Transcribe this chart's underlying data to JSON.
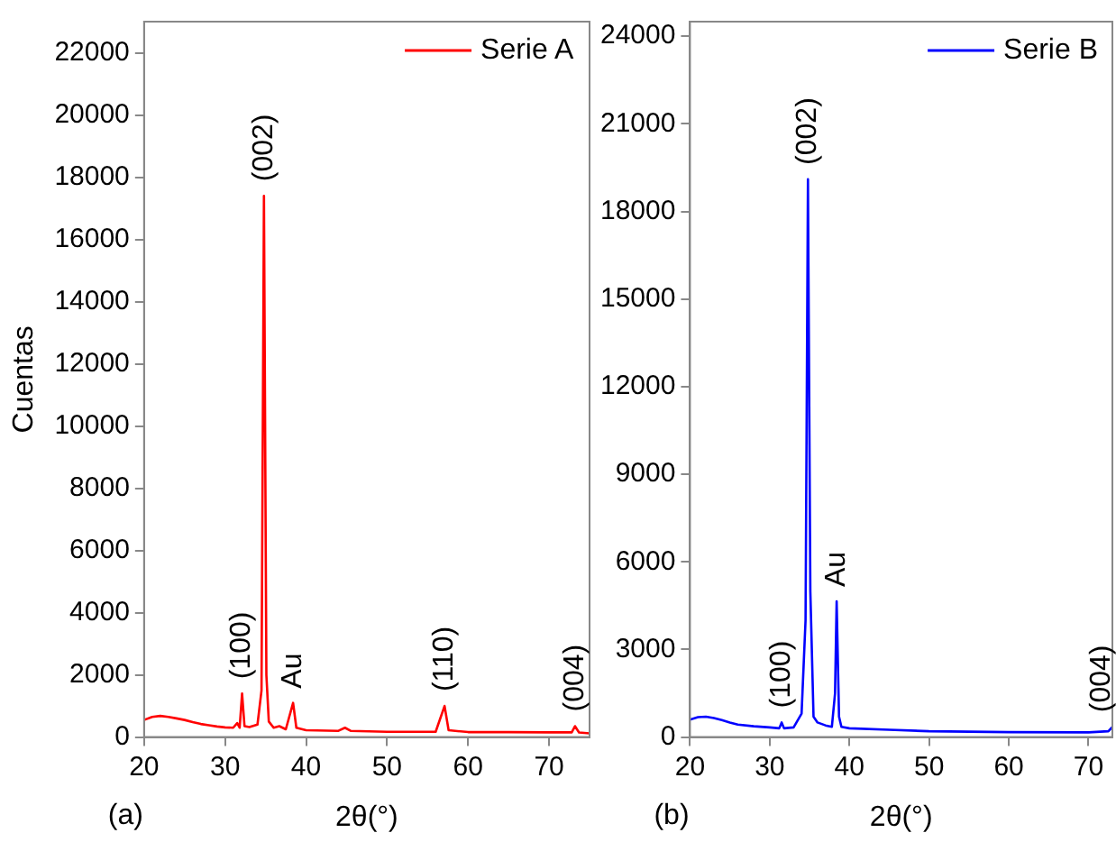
{
  "chart_data": [
    {
      "type": "line",
      "xlabel": "2θ(°)",
      "ylabel": "Cuentas",
      "xlim": [
        20,
        75
      ],
      "xticks": [
        20,
        30,
        40,
        50,
        60,
        70
      ],
      "ylim": [
        0,
        23000
      ],
      "yticks": [
        0,
        2000,
        4000,
        6000,
        8000,
        10000,
        12000,
        14000,
        16000,
        18000,
        20000,
        22000
      ],
      "grid": false,
      "legend": "top right",
      "marker": "none",
      "line_style": "solid",
      "series": [
        {
          "name": "Serie A",
          "color": "#ff0000",
          "x": [
            20,
            21,
            22,
            23,
            24,
            25,
            26,
            27,
            28,
            29,
            30,
            31,
            31.5,
            31.8,
            32.1,
            32.4,
            33,
            34,
            34.5,
            34.8,
            35.1,
            35.4,
            36,
            36.7,
            37.5,
            38.4,
            38.8,
            40,
            44,
            44.8,
            45.5,
            50,
            56,
            57.1,
            57.6,
            60,
            65,
            70,
            72.8,
            73.2,
            73.7,
            75
          ],
          "values": [
            550,
            650,
            680,
            650,
            600,
            550,
            480,
            420,
            380,
            340,
            310,
            300,
            450,
            300,
            1400,
            350,
            320,
            400,
            1500,
            17400,
            2000,
            500,
            300,
            350,
            250,
            1100,
            300,
            220,
            200,
            300,
            200,
            170,
            170,
            1000,
            220,
            160,
            160,
            150,
            150,
            350,
            150,
            120
          ]
        }
      ],
      "annotations": [
        {
          "text": "(100)",
          "x": 32.1,
          "y": 1400
        },
        {
          "text": "(002)",
          "x": 34.8,
          "y": 17400
        },
        {
          "text": "Au",
          "x": 38.4,
          "y": 1100
        },
        {
          "text": "(110)",
          "x": 57.1,
          "y": 1000
        },
        {
          "text": "(004)",
          "x": 73.2,
          "y": 350
        },
        "(a)"
      ]
    },
    {
      "type": "line",
      "xlabel": "2θ(°)",
      "xlim": [
        20,
        73
      ],
      "xticks": [
        20,
        30,
        40,
        50,
        60,
        70
      ],
      "ylim": [
        0,
        24500
      ],
      "yticks": [
        0,
        3000,
        6000,
        9000,
        12000,
        15000,
        18000,
        21000,
        24000
      ],
      "grid": false,
      "legend": "top right",
      "marker": "none",
      "line_style": "solid",
      "series": [
        {
          "name": "Serie B",
          "color": "#0000ff",
          "x": [
            20,
            21,
            22,
            23,
            24,
            25,
            26,
            28,
            30,
            31.2,
            31.5,
            31.8,
            33,
            34,
            34.5,
            34.8,
            35.1,
            35.5,
            36,
            37,
            37.8,
            38.2,
            38.4,
            38.7,
            39,
            40,
            45,
            50,
            60,
            70,
            72.5,
            73
          ],
          "values": [
            600,
            680,
            700,
            650,
            580,
            500,
            430,
            370,
            330,
            300,
            500,
            300,
            330,
            800,
            4000,
            19100,
            5000,
            700,
            500,
            400,
            350,
            1500,
            4650,
            700,
            350,
            300,
            250,
            200,
            170,
            160,
            200,
            350
          ]
        }
      ],
      "annotations": [
        {
          "text": "(100)",
          "x": 31.5,
          "y": 500
        },
        {
          "text": "(002)",
          "x": 34.8,
          "y": 19100
        },
        {
          "text": "Au",
          "x": 38.4,
          "y": 4650
        },
        {
          "text": "(004)",
          "x": 72.6,
          "y": 350
        },
        "(b)"
      ]
    }
  ]
}
